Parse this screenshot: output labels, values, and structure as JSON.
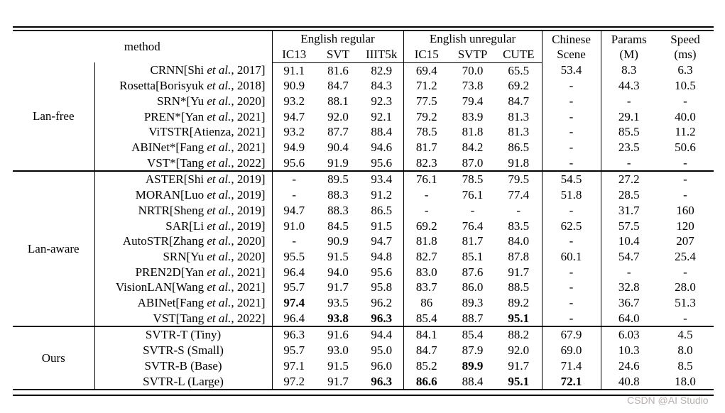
{
  "watermark": "CSDN @AI Studio",
  "table": {
    "header": {
      "method": "method",
      "english_regular": "English regular",
      "english_unregular": "English unregular",
      "sub_cols": [
        "IC13",
        "SVT",
        "IIIT5k",
        "IC15",
        "SVTP",
        "CUTE"
      ],
      "chinese_line1": "Chinese",
      "chinese_line2": "Scene",
      "params_line1": "Params",
      "params_line2": "(M)",
      "speed_line1": "Speed",
      "speed_line2": "(ms)"
    },
    "groups": [
      {
        "label": "Lan-free",
        "rows": [
          {
            "pre": "CRNN[Shi ",
            "it": "et al.",
            "post": ", 2017]",
            "v": [
              "91.1",
              "81.6",
              "82.9",
              "69.4",
              "70.0",
              "65.5",
              "53.4",
              "8.3",
              "6.3"
            ],
            "b": []
          },
          {
            "pre": "Rosetta[Borisyuk ",
            "it": "et al.",
            "post": ", 2018]",
            "v": [
              "90.9",
              "84.7",
              "84.3",
              "71.2",
              "73.8",
              "69.2",
              "-",
              "44.3",
              "10.5"
            ],
            "b": []
          },
          {
            "pre": "SRN*[Yu ",
            "it": "et al.",
            "post": ", 2020]",
            "v": [
              "93.2",
              "88.1",
              "92.3",
              "77.5",
              "79.4",
              "84.7",
              "-",
              "-",
              "-"
            ],
            "b": []
          },
          {
            "pre": "PREN*[Yan ",
            "it": "et al.",
            "post": ", 2021]",
            "v": [
              "94.7",
              "92.0",
              "92.1",
              "79.2",
              "83.9",
              "81.3",
              "-",
              "29.1",
              "40.0"
            ],
            "b": []
          },
          {
            "pre": "ViTSTR[Atienza, 2021]",
            "it": "",
            "post": "",
            "v": [
              "93.2",
              "87.7",
              "88.4",
              "78.5",
              "81.8",
              "81.3",
              "-",
              "85.5",
              "11.2"
            ],
            "b": []
          },
          {
            "pre": "ABINet*[Fang ",
            "it": "et al.",
            "post": ", 2021]",
            "v": [
              "94.9",
              "90.4",
              "94.6",
              "81.7",
              "84.2",
              "86.5",
              "-",
              "23.5",
              "50.6"
            ],
            "b": []
          },
          {
            "pre": "VST*[Tang ",
            "it": "et al.",
            "post": ", 2022]",
            "v": [
              "95.6",
              "91.9",
              "95.6",
              "82.3",
              "87.0",
              "91.8",
              "-",
              "-",
              "-"
            ],
            "b": []
          }
        ]
      },
      {
        "label": "Lan-aware",
        "rows": [
          {
            "pre": "ASTER[Shi ",
            "it": "et al.",
            "post": ", 2019]",
            "v": [
              "-",
              "89.5",
              "93.4",
              "76.1",
              "78.5",
              "79.5",
              "54.5",
              "27.2",
              "-"
            ],
            "b": []
          },
          {
            "pre": "MORAN[Luo ",
            "it": "et al.",
            "post": ", 2019]",
            "v": [
              "-",
              "88.3",
              "91.2",
              "-",
              "76.1",
              "77.4",
              "51.8",
              "28.5",
              "-"
            ],
            "b": []
          },
          {
            "pre": "NRTR[Sheng ",
            "it": "et al.",
            "post": ", 2019]",
            "v": [
              "94.7",
              "88.3",
              "86.5",
              "-",
              "-",
              "-",
              "-",
              "31.7",
              "160"
            ],
            "b": []
          },
          {
            "pre": "SAR[Li ",
            "it": "et al.",
            "post": ", 2019]",
            "v": [
              "91.0",
              "84.5",
              "91.5",
              "69.2",
              "76.4",
              "83.5",
              "62.5",
              "57.5",
              "120"
            ],
            "b": []
          },
          {
            "pre": "AutoSTR[Zhang ",
            "it": "et al.",
            "post": ", 2020]",
            "v": [
              "-",
              "90.9",
              "94.7",
              "81.8",
              "81.7",
              "84.0",
              "-",
              "10.4",
              "207"
            ],
            "b": []
          },
          {
            "pre": "SRN[Yu ",
            "it": "et al.",
            "post": ", 2020]",
            "v": [
              "95.5",
              "91.5",
              "94.8",
              "82.7",
              "85.1",
              "87.8",
              "60.1",
              "54.7",
              "25.4"
            ],
            "b": []
          },
          {
            "pre": "PREN2D[Yan ",
            "it": "et al.",
            "post": ", 2021]",
            "v": [
              "96.4",
              "94.0",
              "95.6",
              "83.0",
              "87.6",
              "91.7",
              "-",
              "-",
              "-"
            ],
            "b": []
          },
          {
            "pre": "VisionLAN[Wang ",
            "it": "et al.",
            "post": ", 2021]",
            "v": [
              "95.7",
              "91.7",
              "95.8",
              "83.7",
              "86.0",
              "88.5",
              "-",
              "32.8",
              "28.0"
            ],
            "b": []
          },
          {
            "pre": "ABINet[Fang ",
            "it": "et al.",
            "post": ", 2021]",
            "v": [
              "97.4",
              "93.5",
              "96.2",
              "86",
              "89.3",
              "89.2",
              "-",
              "36.7",
              "51.3"
            ],
            "b": [
              0
            ]
          },
          {
            "pre": "VST[Tang ",
            "it": "et al.",
            "post": ", 2022]",
            "v": [
              "96.4",
              "93.8",
              "96.3",
              "85.4",
              "88.7",
              "95.1",
              "-",
              "64.0",
              "-"
            ],
            "b": [
              1,
              2,
              5,
              6
            ]
          }
        ]
      },
      {
        "label": "Ours",
        "rows": [
          {
            "pre": "SVTR-T (Tiny)",
            "it": "",
            "post": "",
            "v": [
              "96.3",
              "91.6",
              "94.4",
              "84.1",
              "85.4",
              "88.2",
              "67.9",
              "6.03",
              "4.5"
            ],
            "b": []
          },
          {
            "pre": "SVTR-S (Small)",
            "it": "",
            "post": "",
            "v": [
              "95.7",
              "93.0",
              "95.0",
              "84.7",
              "87.9",
              "92.0",
              "69.0",
              "10.3",
              "8.0"
            ],
            "b": []
          },
          {
            "pre": "SVTR-B (Base)",
            "it": "",
            "post": "",
            "v": [
              "97.1",
              "91.5",
              "96.0",
              "85.2",
              "89.9",
              "91.7",
              "71.4",
              "24.6",
              "8.5"
            ],
            "b": [
              4
            ]
          },
          {
            "pre": "SVTR-L (Large)",
            "it": "",
            "post": "",
            "v": [
              "97.2",
              "91.7",
              "96.3",
              "86.6",
              "88.4",
              "95.1",
              "72.1",
              "40.8",
              "18.0"
            ],
            "b": [
              2,
              3,
              5,
              6
            ]
          }
        ]
      }
    ]
  }
}
